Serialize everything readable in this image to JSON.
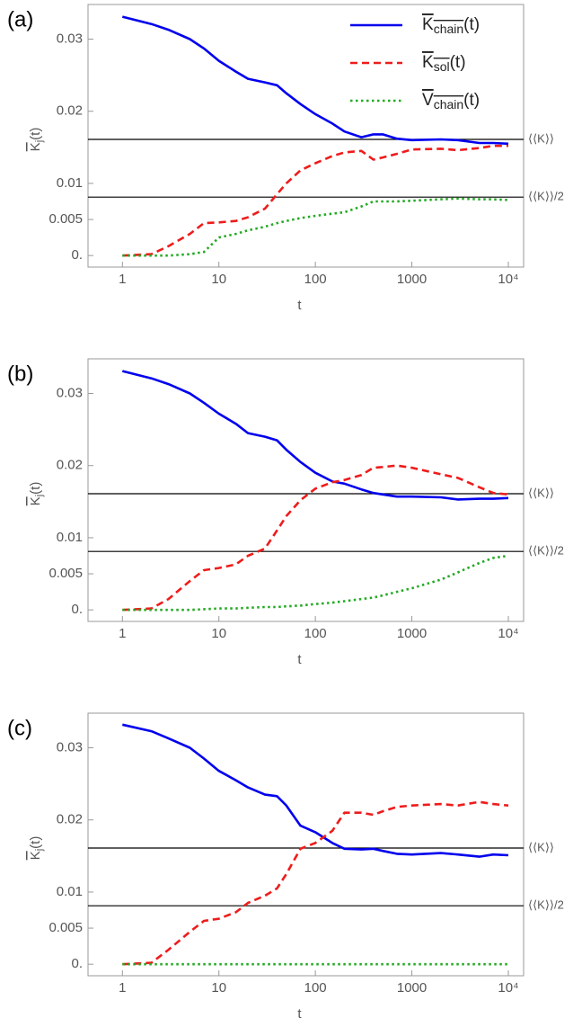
{
  "chart_data": [
    {
      "type": "line",
      "panel_label": "(a)",
      "xlabel": "t",
      "ylabel": [
        "K",
        "j",
        "(t)"
      ],
      "log_x": true,
      "legend": "upper right",
      "xlim": [
        0.44,
        14400
      ],
      "ylim": [
        -0.0016,
        0.0348
      ],
      "xticks": [
        1,
        10,
        100,
        1000,
        {
          "value": 10000,
          "label": "10⁴"
        }
      ],
      "yticks": [
        {
          "value": 0,
          "label": "0."
        },
        0.005,
        0.01,
        0.02,
        0.03
      ],
      "hlines": [
        {
          "value": 0.0161,
          "label": "⟨⟨K⟩⟩"
        },
        {
          "value": 0.0081,
          "label": "⟨⟨K⟩⟩/2"
        }
      ],
      "x": [
        1,
        2,
        3,
        5,
        7,
        10,
        15,
        20,
        30,
        40,
        50,
        70,
        100,
        150,
        200,
        300,
        400,
        500,
        700,
        1000,
        2000,
        3000,
        5000,
        7000,
        10000
      ],
      "series": [
        {
          "name": [
            "K",
            "chain",
            "(t)"
          ],
          "color": "#0000ee",
          "dash": "solid",
          "values": [
            0.0331,
            0.0321,
            0.0313,
            0.03,
            0.0287,
            0.027,
            0.0255,
            0.0245,
            0.024,
            0.0236,
            0.0225,
            0.021,
            0.0196,
            0.0183,
            0.0172,
            0.0164,
            0.0168,
            0.0168,
            0.0162,
            0.016,
            0.0161,
            0.016,
            0.0156,
            0.0156,
            0.0155
          ]
        },
        {
          "name": [
            "K",
            "sol",
            "(t)"
          ],
          "color": "#ee1c1c",
          "dash": "dashed",
          "values": [
            0,
            0.0002,
            0.0013,
            0.003,
            0.0045,
            0.0046,
            0.0048,
            0.0053,
            0.0065,
            0.0085,
            0.01,
            0.0118,
            0.0128,
            0.0138,
            0.0143,
            0.0145,
            0.0133,
            0.0136,
            0.0141,
            0.0147,
            0.0148,
            0.0146,
            0.0149,
            0.0152,
            0.0152
          ]
        },
        {
          "name": [
            "V",
            "chain",
            "(t)"
          ],
          "color": "#22aa22",
          "dash": "dotted",
          "values": [
            0,
            0,
            0,
            0.0002,
            0.0005,
            0.0025,
            0.003,
            0.0035,
            0.004,
            0.0045,
            0.0048,
            0.0052,
            0.0055,
            0.0058,
            0.006,
            0.0068,
            0.0075,
            0.0075,
            0.0075,
            0.0076,
            0.0078,
            0.0079,
            0.0078,
            0.0078,
            0.0077
          ]
        }
      ]
    },
    {
      "type": "line",
      "panel_label": "(b)",
      "xlabel": "t",
      "ylabel": [
        "K",
        "j",
        "(t)"
      ],
      "log_x": true,
      "xlim": [
        0.44,
        14400
      ],
      "ylim": [
        -0.0016,
        0.0348
      ],
      "xticks": [
        1,
        10,
        100,
        1000,
        {
          "value": 10000,
          "label": "10⁴"
        }
      ],
      "yticks": [
        {
          "value": 0,
          "label": "0."
        },
        0.005,
        0.01,
        0.02,
        0.03
      ],
      "hlines": [
        {
          "value": 0.0161,
          "label": "⟨⟨K⟩⟩"
        },
        {
          "value": 0.0081,
          "label": "⟨⟨K⟩⟩/2"
        }
      ],
      "x": [
        1,
        2,
        3,
        5,
        7,
        10,
        15,
        20,
        30,
        40,
        50,
        70,
        100,
        150,
        200,
        300,
        400,
        500,
        700,
        1000,
        2000,
        3000,
        5000,
        7000,
        10000
      ],
      "series": [
        {
          "color": "#0000ee",
          "dash": "solid",
          "values": [
            0.0331,
            0.0321,
            0.0313,
            0.03,
            0.0287,
            0.0272,
            0.0258,
            0.0245,
            0.024,
            0.0235,
            0.0222,
            0.0205,
            0.019,
            0.0178,
            0.0175,
            0.0167,
            0.0162,
            0.016,
            0.0157,
            0.0157,
            0.0156,
            0.0153,
            0.0154,
            0.0154,
            0.0155
          ]
        },
        {
          "color": "#ee1c1c",
          "dash": "dashed",
          "values": [
            0,
            0.0002,
            0.0015,
            0.004,
            0.0055,
            0.0058,
            0.0063,
            0.0075,
            0.0085,
            0.011,
            0.013,
            0.0152,
            0.0168,
            0.0177,
            0.018,
            0.0187,
            0.0197,
            0.0198,
            0.02,
            0.0197,
            0.0188,
            0.0183,
            0.017,
            0.0162,
            0.016
          ]
        },
        {
          "color": "#22aa22",
          "dash": "dotted",
          "values": [
            0,
            0,
            0,
            0,
            0.0001,
            0.0002,
            0.0002,
            0.0003,
            0.0004,
            0.0004,
            0.0005,
            0.0006,
            0.0008,
            0.001,
            0.0012,
            0.0015,
            0.0017,
            0.002,
            0.0025,
            0.003,
            0.0042,
            0.0052,
            0.0065,
            0.0072,
            0.0075
          ]
        }
      ]
    },
    {
      "type": "line",
      "panel_label": "(c)",
      "xlabel": "t",
      "ylabel": [
        "K",
        "j",
        "(t)"
      ],
      "log_x": true,
      "xlim": [
        0.44,
        14400
      ],
      "ylim": [
        -0.0016,
        0.0348
      ],
      "xticks": [
        1,
        10,
        100,
        1000,
        {
          "value": 10000,
          "label": "10⁴"
        }
      ],
      "yticks": [
        {
          "value": 0,
          "label": "0."
        },
        0.005,
        0.01,
        0.02,
        0.03
      ],
      "hlines": [
        {
          "value": 0.0161,
          "label": "⟨⟨K⟩⟩"
        },
        {
          "value": 0.0081,
          "label": "⟨⟨K⟩⟩/2"
        }
      ],
      "x": [
        1,
        2,
        3,
        5,
        7,
        10,
        15,
        20,
        30,
        40,
        50,
        70,
        100,
        150,
        200,
        300,
        400,
        500,
        700,
        1000,
        2000,
        3000,
        5000,
        7000,
        10000
      ],
      "series": [
        {
          "color": "#0000ee",
          "dash": "solid",
          "values": [
            0.0332,
            0.0323,
            0.0313,
            0.03,
            0.0285,
            0.0268,
            0.0255,
            0.0245,
            0.0235,
            0.0233,
            0.022,
            0.0192,
            0.0183,
            0.0168,
            0.016,
            0.0159,
            0.016,
            0.0157,
            0.0153,
            0.0152,
            0.0154,
            0.0152,
            0.0149,
            0.0152,
            0.0151
          ]
        },
        {
          "color": "#ee1c1c",
          "dash": "dashed",
          "values": [
            0,
            0.0002,
            0.002,
            0.0045,
            0.006,
            0.0063,
            0.0072,
            0.0085,
            0.0095,
            0.0105,
            0.0125,
            0.016,
            0.0168,
            0.0185,
            0.021,
            0.021,
            0.0207,
            0.0212,
            0.0218,
            0.022,
            0.0222,
            0.022,
            0.0225,
            0.0222,
            0.022
          ]
        },
        {
          "color": "#22aa22",
          "dash": "dotted",
          "values": [
            0,
            0,
            0,
            0,
            0,
            0,
            0,
            0,
            0,
            0,
            0,
            0,
            0,
            0,
            0,
            0,
            0,
            0,
            0,
            0,
            0,
            0,
            0,
            0,
            0
          ]
        }
      ]
    }
  ]
}
